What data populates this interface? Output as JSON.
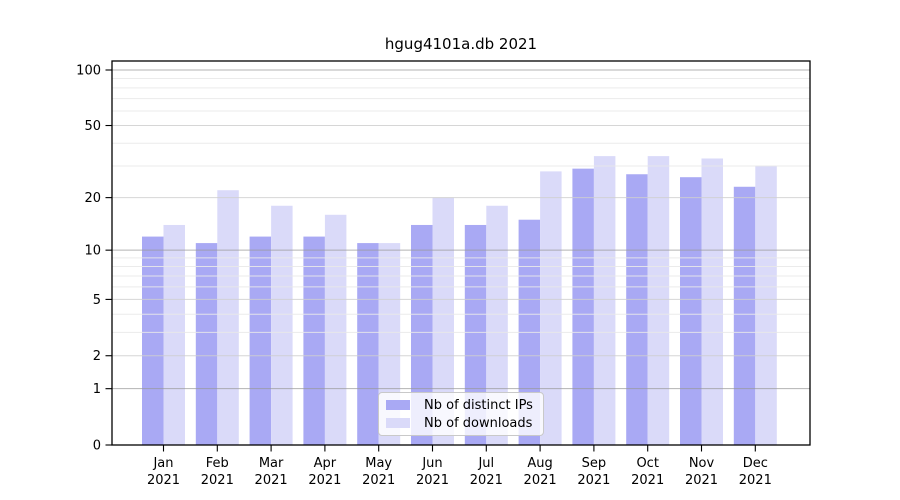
{
  "title": "hgug4101a.db 2021",
  "chart_data": {
    "type": "bar",
    "title": "hgug4101a.db 2021",
    "year": "2021",
    "categories": [
      "Jan",
      "Feb",
      "Mar",
      "Apr",
      "May",
      "Jun",
      "Jul",
      "Aug",
      "Sep",
      "Oct",
      "Nov",
      "Dec"
    ],
    "series": [
      {
        "name": "Nb of distinct IPs",
        "color": "#a9a9f4",
        "values": [
          12,
          11,
          12,
          12,
          11,
          14,
          14,
          15,
          29,
          27,
          26,
          23
        ]
      },
      {
        "name": "Nb of downloads",
        "color": "#dadaf9",
        "values": [
          14,
          22,
          18,
          16,
          11,
          20,
          18,
          28,
          34,
          34,
          33,
          30
        ]
      }
    ],
    "y_scale": "log10(1+x)",
    "y_tick_values": [
      0,
      1,
      2,
      5,
      10,
      20,
      50,
      100
    ],
    "y_minor_gridline_values": [
      3,
      4,
      6,
      7,
      8,
      9,
      30,
      40,
      60,
      70,
      80,
      90
    ],
    "ylim": [
      0,
      112
    ],
    "grid": true,
    "legend_position": "bottom-center"
  },
  "legend": {
    "items": [
      {
        "label": "Nb of distinct IPs",
        "color": "#a9a9f4"
      },
      {
        "label": "Nb of downloads",
        "color": "#dadaf9"
      }
    ]
  },
  "colors": {
    "distinct_ips": "#a9a9f4",
    "downloads": "#dadaf9",
    "axis": "#000000",
    "decade_grid": "#9a9a9a",
    "mid_grid": "#cfcfcf",
    "minor_grid": "#e9e9e9"
  }
}
